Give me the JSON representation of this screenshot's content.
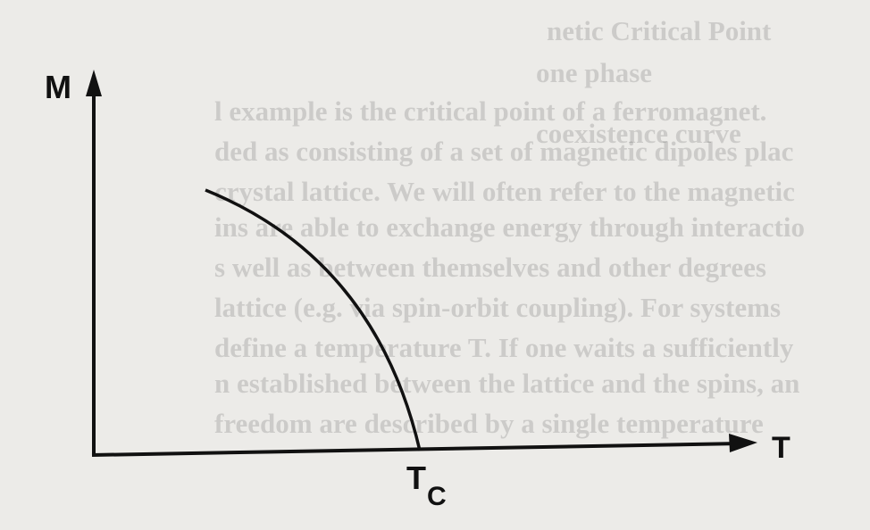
{
  "diagram": {
    "y_axis_label": "M",
    "x_axis_label": "T",
    "critical_label": "T",
    "critical_subscript": "C"
  },
  "background_text": {
    "lines": [
      "netic Critical Point",
      "one phase",
      "l example is the critical point of a ferromagnet.",
      "coexistence curve",
      "ded as consisting of a set of magnetic dipoles plac",
      "crystal lattice. We will often refer to the magnetic",
      "ins are able to exchange energy through interactio",
      "s well as between themselves and other degrees",
      "lattice (e.g. via spin-orbit coupling). For systems",
      "define a temperature T. If one waits a sufficiently",
      "n established between the lattice and the spins, an",
      "freedom are described by a single temperature"
    ]
  }
}
